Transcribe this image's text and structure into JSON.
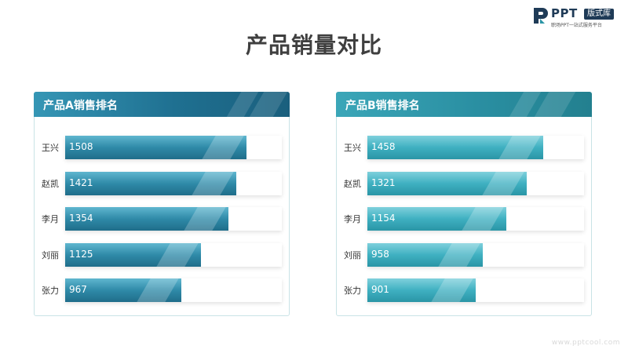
{
  "logo": {
    "word": "PPT",
    "badge": "版式库",
    "sub": "职场PPT一站式服务平台"
  },
  "watermark": "www.pptcool.com",
  "title": "产品销量对比",
  "colors": {
    "panel_a": "#1f7091",
    "panel_b": "#2a95a6",
    "title": "#3f3f3f"
  },
  "chart_data": [
    {
      "type": "bar",
      "orientation": "horizontal",
      "title": "产品A销售排名",
      "categories": [
        "王兴",
        "赵凯",
        "李月",
        "刘丽",
        "张力"
      ],
      "values": [
        1508,
        1421,
        1354,
        1125,
        967
      ],
      "xlim": [
        0,
        1800
      ]
    },
    {
      "type": "bar",
      "orientation": "horizontal",
      "title": "产品B销售排名",
      "categories": [
        "王兴",
        "赵凯",
        "李月",
        "刘丽",
        "张力"
      ],
      "values": [
        1458,
        1321,
        1154,
        958,
        901
      ],
      "xlim": [
        0,
        1800
      ]
    }
  ]
}
